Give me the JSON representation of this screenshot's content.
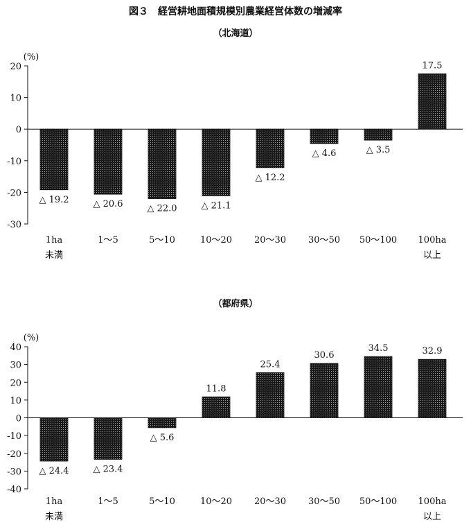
{
  "figure_title": "図３　経営耕地面積規模別農業経営体数の増減率",
  "chart_data": [
    {
      "type": "bar",
      "title": "（北海道）",
      "unit": "(%)",
      "ylim": [
        -30,
        20
      ],
      "yticks": [
        -30,
        -20,
        -10,
        0,
        10,
        20
      ],
      "categories": [
        [
          "1ha",
          "未満"
        ],
        [
          "1～5"
        ],
        [
          "5～10"
        ],
        [
          "10～20"
        ],
        [
          "20～30"
        ],
        [
          "30～50"
        ],
        [
          "50～100"
        ],
        [
          "100ha",
          "以上"
        ]
      ],
      "values": [
        -19.2,
        -20.6,
        -22.0,
        -21.1,
        -12.2,
        -4.6,
        -3.5,
        17.5
      ],
      "labels": [
        "△ 19.2",
        "△ 20.6",
        "△ 22.0",
        "△ 21.1",
        "△ 12.2",
        "△ 4.6",
        "△ 3.5",
        "17.5"
      ],
      "grid": false,
      "legend": "none"
    },
    {
      "type": "bar",
      "title": "（都府県）",
      "unit": "(%)",
      "ylim": [
        -40,
        40
      ],
      "yticks": [
        -40,
        -30,
        -20,
        -10,
        0,
        10,
        20,
        30,
        40
      ],
      "categories": [
        [
          "1ha",
          "未満"
        ],
        [
          "1～5"
        ],
        [
          "5～10"
        ],
        [
          "10～20"
        ],
        [
          "20～30"
        ],
        [
          "30～50"
        ],
        [
          "50～100"
        ],
        [
          "100ha",
          "以上"
        ]
      ],
      "values": [
        -24.4,
        -23.4,
        -5.6,
        11.8,
        25.4,
        30.6,
        34.5,
        32.9
      ],
      "labels": [
        "△ 24.4",
        "△ 23.4",
        "△ 5.6",
        "11.8",
        "25.4",
        "30.6",
        "34.5",
        "32.9"
      ],
      "grid": false,
      "legend": "none"
    }
  ]
}
